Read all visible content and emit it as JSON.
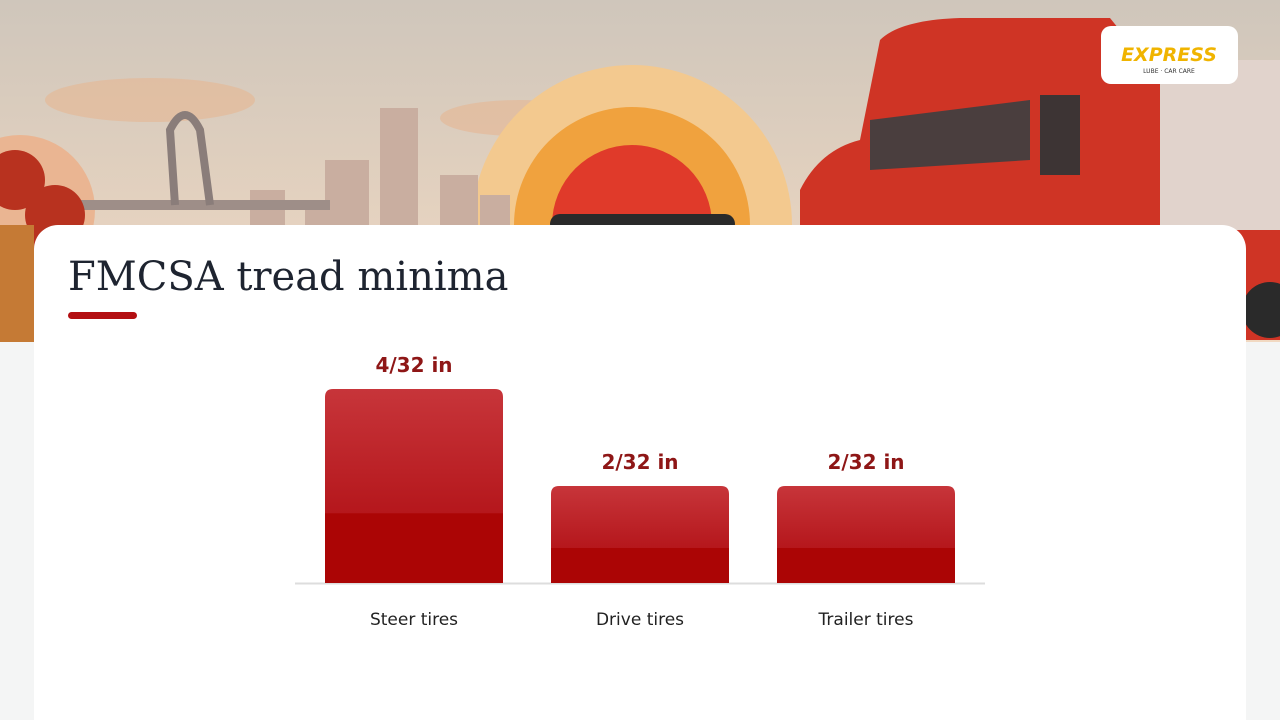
{
  "logo": {
    "name": "EXPRESS",
    "tagline": "LUBE · CAR CARE"
  },
  "chart_data": {
    "type": "bar",
    "title": "FMCSA tread minima",
    "categories": [
      "Steer tires",
      "Drive tires",
      "Trailer tires"
    ],
    "values": [
      0.125,
      0.0625,
      0.0625
    ],
    "value_labels": [
      "4/32 in",
      "2/32 in",
      "2/32 in"
    ],
    "color": "#b30f12"
  }
}
